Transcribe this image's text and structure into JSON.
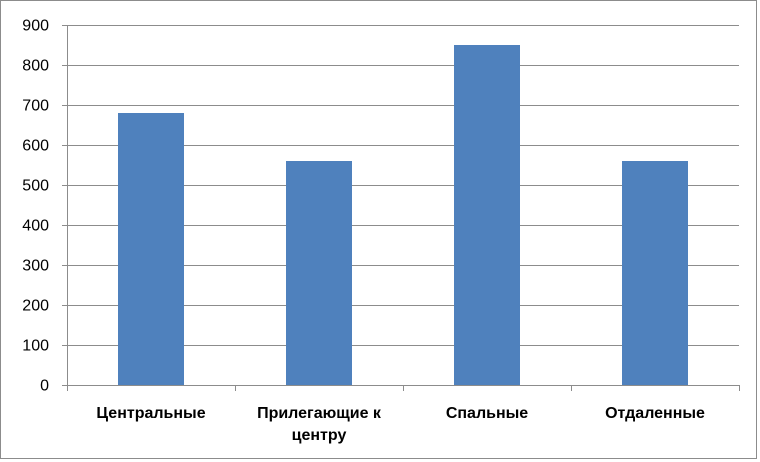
{
  "chart_data": {
    "type": "bar",
    "categories": [
      [
        "Центральные"
      ],
      [
        "Прилегающие к",
        "центру"
      ],
      [
        "Спальные"
      ],
      [
        "Отдаленные"
      ]
    ],
    "values": [
      680,
      560,
      850,
      560
    ],
    "title": "",
    "xlabel": "",
    "ylabel": "",
    "ylim": [
      0,
      900
    ],
    "yticks": [
      0,
      100,
      200,
      300,
      400,
      500,
      600,
      700,
      800,
      900
    ],
    "grid": true,
    "legend": "none",
    "colors": {
      "bar": "#4f81bd",
      "bar_stroke": "#3f6fa8",
      "grid": "#8c8c8c",
      "axis": "#8c8c8c",
      "frame": "#8c8c8c"
    }
  }
}
